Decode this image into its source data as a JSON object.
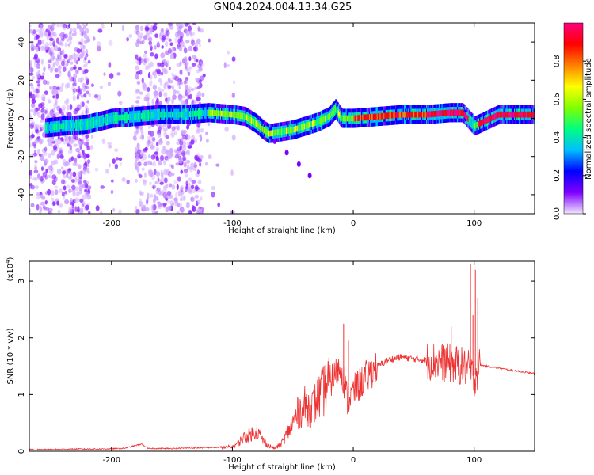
{
  "title": "GN04.2024.004.13.34.G25",
  "chart_data": [
    {
      "type": "heatmap",
      "xlabel": "Height of straight line (km)",
      "ylabel": "Frequency (Hz)",
      "xlim": [
        -268,
        150
      ],
      "ylim": [
        -50,
        50
      ],
      "xticks": [
        -200,
        -100,
        0,
        100
      ],
      "xtick_labels": [
        "-200",
        "-100",
        "0",
        "100"
      ],
      "yticks": [
        -40,
        -20,
        0,
        20,
        40
      ],
      "ytick_labels": [
        "-40",
        "-20",
        "0",
        "20",
        "40"
      ],
      "colorbar": {
        "label": "Normalized spectral amplitude",
        "range": [
          0,
          1
        ],
        "ticks": [
          0.0,
          0.2,
          0.4,
          0.6,
          0.8
        ],
        "tick_labels": [
          "0.0",
          "0.2",
          "0.4",
          "0.6",
          "0.8"
        ],
        "colors": [
          "#f0e6ff",
          "#7f00ff",
          "#0000ff",
          "#00bfff",
          "#00ff80",
          "#80ff00",
          "#ffff00",
          "#ff8000",
          "#ff0000",
          "#ff0080"
        ]
      },
      "ridge": {
        "x": [
          -255,
          -240,
          -220,
          -200,
          -180,
          -160,
          -140,
          -120,
          -100,
          -90,
          -80,
          -75,
          -70,
          -60,
          -50,
          -40,
          -30,
          -20,
          -15,
          -10,
          0,
          20,
          40,
          60,
          80,
          90,
          100,
          120,
          150
        ],
        "y": [
          -5,
          -4,
          -3,
          0,
          1,
          2,
          2,
          3,
          2,
          1,
          -3,
          -6,
          -8,
          -7,
          -6,
          -4,
          -2,
          1,
          5,
          0,
          0,
          1,
          2,
          2,
          3,
          3,
          -4,
          2,
          2
        ]
      },
      "branch": {
        "x": [
          -65,
          -55,
          -45,
          -36
        ],
        "y": [
          -12,
          -18,
          -24,
          -30
        ]
      },
      "grid": false
    },
    {
      "type": "line",
      "xlabel": "Height of straight line (km)",
      "ylabel": "SNR (10 * v/v)",
      "y_multiplier": "(x10",
      "y_multiplier_exp": "4",
      "xlim": [
        -268,
        150
      ],
      "ylim": [
        0,
        3.35
      ],
      "xticks": [
        -200,
        -100,
        0,
        100
      ],
      "xtick_labels": [
        "-200",
        "-100",
        "0",
        "100"
      ],
      "yticks": [
        0,
        1,
        2,
        3
      ],
      "ytick_labels": [
        "0",
        "1",
        "2",
        "3"
      ],
      "color": "#ee3333",
      "series": [
        {
          "x": [
            -268,
            -250,
            -230,
            -210,
            -190,
            -175,
            -170,
            -150,
            -130,
            -110,
            -100,
            -95,
            -90,
            -85,
            -80,
            -75,
            -70,
            -65,
            -60,
            -55,
            -50,
            -45,
            -40,
            -35,
            -30,
            -25,
            -20,
            -15,
            -10,
            -5,
            0,
            10,
            20,
            30,
            40,
            50,
            60,
            70,
            80,
            90,
            95,
            100,
            105,
            110,
            120,
            130,
            140,
            150
          ],
          "y": [
            0.02,
            0.02,
            0.03,
            0.03,
            0.04,
            0.12,
            0.04,
            0.04,
            0.05,
            0.06,
            0.08,
            0.15,
            0.25,
            0.3,
            0.38,
            0.2,
            0.1,
            0.05,
            0.12,
            0.3,
            0.5,
            0.7,
            0.8,
            0.75,
            0.9,
            1.05,
            1.2,
            1.35,
            1.5,
            0.9,
            1.05,
            1.3,
            1.5,
            1.62,
            1.66,
            1.63,
            1.6,
            1.58,
            1.55,
            1.5,
            1.45,
            1.3,
            1.52,
            1.5,
            1.47,
            1.43,
            1.4,
            1.37
          ]
        }
      ],
      "spikes": {
        "x": [
          -8,
          -4,
          81,
          97,
          99,
          101,
          103
        ],
        "y": [
          2.25,
          1.95,
          2.2,
          3.3,
          2.4,
          3.2,
          2.7
        ]
      },
      "grid": false
    }
  ]
}
